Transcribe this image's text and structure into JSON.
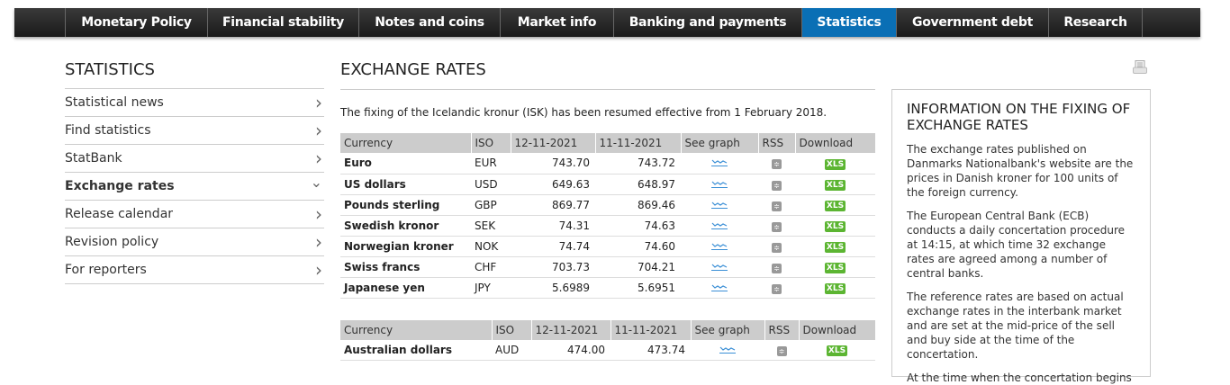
{
  "nav": {
    "items": [
      "Monetary Policy",
      "Financial stability",
      "Notes and coins",
      "Market info",
      "Banking and payments",
      "Statistics",
      "Government debt",
      "Research"
    ],
    "active": "Statistics"
  },
  "sidebar": {
    "title": "STATISTICS",
    "items": [
      "Statistical news",
      "Find statistics",
      "StatBank",
      "Exchange rates",
      "Release calendar",
      "Revision policy",
      "For reporters"
    ],
    "current": "Exchange rates"
  },
  "main": {
    "title": "EXCHANGE RATES",
    "intro": "The fixing of the Icelandic kronur (ISK) has been resumed effective from 1 February 2018.",
    "headers": [
      "Currency",
      "ISO",
      "12-11-2021",
      "11-11-2021",
      "See graph",
      "RSS",
      "Download"
    ],
    "download_label": "XLS",
    "table1": [
      [
        "Euro",
        "EUR",
        "743.70",
        "743.72"
      ],
      [
        "US dollars",
        "USD",
        "649.63",
        "648.97"
      ],
      [
        "Pounds sterling",
        "GBP",
        "869.77",
        "869.46"
      ],
      [
        "Swedish kronor",
        "SEK",
        "74.31",
        "74.63"
      ],
      [
        "Norwegian kroner",
        "NOK",
        "74.74",
        "74.60"
      ],
      [
        "Swiss francs",
        "CHF",
        "703.73",
        "704.21"
      ],
      [
        "Japanese yen",
        "JPY",
        "5.6989",
        "5.6951"
      ]
    ],
    "table2": [
      [
        "Australian dollars",
        "AUD",
        "474.00",
        "473.74"
      ]
    ]
  },
  "info": {
    "title": "INFORMATION ON THE FIXING OF EXCHANGE RATES",
    "paragraphs": [
      "The exchange rates published on Danmarks Nationalbank's website are the prices in Danish kroner for 100 units of the foreign currency.",
      "The European Central Bank (ECB) conducts a daily concertation procedure at 14:15, at which time 32 exchange rates are agreed among a number of central banks.",
      "The reference rates are based on actual exchange rates in the interbank market and are set at the mid-price of the sell and buy side at the time of the concertation.",
      "At the time when the concertation begins"
    ]
  },
  "colors": {
    "nav_active": "#0a6fb5",
    "xls": "#5cb532"
  }
}
